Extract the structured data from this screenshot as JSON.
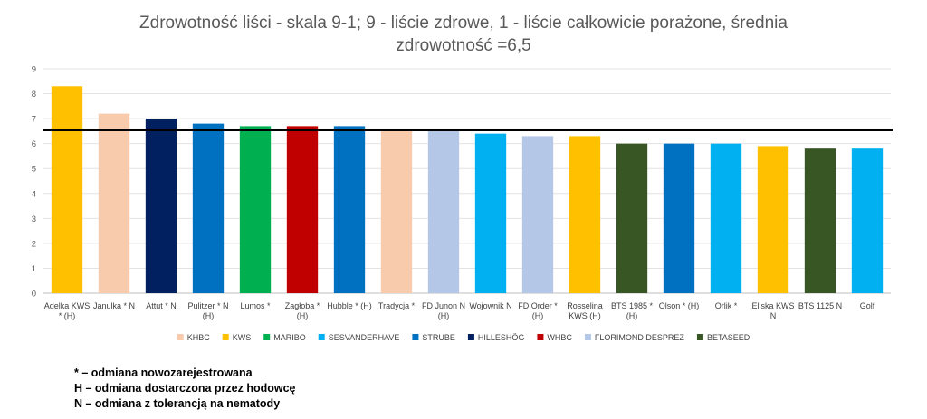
{
  "chart_data": {
    "type": "bar",
    "title_line1": "Zdrowotność liści - skala 9-1; 9 - liście zdrowe, 1 - liście całkowicie porażone, średnia",
    "title_line2": "zdrowotność =6,5",
    "ylim": [
      0,
      9
    ],
    "yticks": [
      "0",
      "1",
      "2",
      "3",
      "4",
      "5",
      "6",
      "7",
      "8",
      "9"
    ],
    "grid": true,
    "mean_line": 6.55,
    "legend_position": "bottom",
    "categories": [
      [
        "Adelka KWS",
        "* (H)"
      ],
      [
        "Janulka * N"
      ],
      [
        "Attut * N"
      ],
      [
        "Pulitzer * N",
        "(H)"
      ],
      [
        "Lumos *"
      ],
      [
        "Zagłoba *",
        "(H)"
      ],
      [
        "Hubble * (H)"
      ],
      [
        "Tradycja *"
      ],
      [
        "FD Junon N",
        "(H)"
      ],
      [
        "Wojownik N"
      ],
      [
        "FD Order *",
        "(H)"
      ],
      [
        "Rosselina",
        "KWS (H)"
      ],
      [
        "BTS 1985 *",
        "(H)"
      ],
      [
        "Olson * (H)"
      ],
      [
        "Orlik *"
      ],
      [
        "Eliska KWS",
        "N"
      ],
      [
        "BTS 1125 N"
      ],
      [
        "Golf"
      ]
    ],
    "values": [
      8.3,
      7.2,
      7.0,
      6.8,
      6.7,
      6.7,
      6.7,
      6.5,
      6.5,
      6.4,
      6.3,
      6.3,
      6.0,
      6.0,
      6.0,
      5.9,
      5.8,
      5.8
    ],
    "bar_breeder": [
      "KWS",
      "KHBC",
      "HILLESHÖG",
      "STRUBE",
      "MARIBO",
      "WHBC",
      "STRUBE",
      "KHBC",
      "FLORIMOND DESPREZ",
      "SESVANDERHAVE",
      "FLORIMOND DESPREZ",
      "KWS",
      "BETASEED",
      "STRUBE",
      "SESVANDERHAVE",
      "KWS",
      "BETASEED",
      "SESVANDERHAVE"
    ],
    "legend": [
      {
        "name": "KHBC",
        "color": "#F8CBAD"
      },
      {
        "name": "KWS",
        "color": "#FFC000"
      },
      {
        "name": "MARIBO",
        "color": "#00B050"
      },
      {
        "name": "SESVANDERHAVE",
        "color": "#00B0F0"
      },
      {
        "name": "STRUBE",
        "color": "#0070C0"
      },
      {
        "name": "HILLESHÖG",
        "color": "#002060"
      },
      {
        "name": "WHBC",
        "color": "#C00000"
      },
      {
        "name": "FLORIMOND DESPREZ",
        "color": "#B4C7E7"
      },
      {
        "name": "BETASEED",
        "color": "#375623"
      }
    ]
  },
  "notes": [
    "* – odmiana nowozarejestrowana",
    "H – odmiana dostarczona przez hodowcę",
    "N – odmiana z tolerancją na nematody"
  ]
}
